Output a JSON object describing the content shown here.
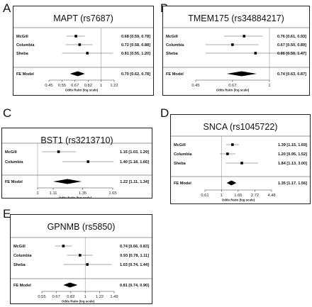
{
  "chart_data": [
    {
      "panel": "A",
      "title": "MAPT (rs7687)",
      "type": "forest",
      "studies": [
        {
          "name": "McGill",
          "or": 0.68,
          "lo": 0.59,
          "hi": 0.78,
          "label": "0.68 [0.59, 0.78]"
        },
        {
          "name": "Columbia",
          "or": 0.72,
          "lo": 0.58,
          "hi": 0.88,
          "label": "0.72 [0.58, 0.88]"
        },
        {
          "name": "Sheba",
          "or": 0.81,
          "lo": 0.55,
          "hi": 1.2,
          "label": "0.81 [0.55, 1.20]"
        }
      ],
      "summary": {
        "name": "FE Model",
        "or": 0.7,
        "lo": 0.62,
        "hi": 0.78,
        "label": "0.70 [0.62, 0.78]"
      },
      "ticks": [
        "0.45",
        "0.55",
        "0.67",
        "0.82",
        "1",
        "1.22"
      ],
      "xlabel": "Odds Ratio (log scale)"
    },
    {
      "panel": "B",
      "title": "TMEM175 (rs34884217)",
      "type": "forest",
      "studies": [
        {
          "name": "McGill",
          "or": 0.76,
          "lo": 0.61,
          "hi": 0.93,
          "label": "0.76 [0.61, 0.93]"
        },
        {
          "name": "Columbia",
          "or": 0.67,
          "lo": 0.5,
          "hi": 0.89,
          "label": "0.67 [0.50, 0.89]"
        },
        {
          "name": "Sheba",
          "or": 0.86,
          "lo": 0.5,
          "hi": 1.47,
          "label": "0.86 [0.50, 1.47]"
        }
      ],
      "summary": {
        "name": "FE Model",
        "or": 0.74,
        "lo": 0.63,
        "hi": 0.87,
        "label": "0.74 [0.63, 0.87]"
      },
      "ticks": [
        "0.45",
        "0.67",
        "1"
      ],
      "xlabel": "Odds Ratio (log scale)"
    },
    {
      "panel": "C",
      "title": "BST1 (rs3213710)",
      "type": "forest",
      "studies": [
        {
          "name": "McGill",
          "or": 1.15,
          "lo": 1.03,
          "hi": 1.29,
          "label": "1.15 [1.03, 1.29]"
        },
        {
          "name": "Columbia",
          "or": 1.4,
          "lo": 1.18,
          "hi": 1.66,
          "label": "1.40 [1.18, 1.66]"
        }
      ],
      "summary": {
        "name": "FE Model",
        "or": 1.22,
        "lo": 1.11,
        "hi": 1.34,
        "label": "1.22 [1.11, 1.34]"
      },
      "ticks": [
        "1",
        "1.11",
        "1.35",
        "1.65"
      ],
      "xlabel": "Odds Ratio (log scale)"
    },
    {
      "panel": "D",
      "title": "SNCA (rs1045722)",
      "type": "forest",
      "studies": [
        {
          "name": "McGill",
          "or": 1.39,
          "lo": 1.15,
          "hi": 1.69,
          "label": "1.39 [1.15, 1.69]"
        },
        {
          "name": "Columbia",
          "or": 1.2,
          "lo": 0.95,
          "hi": 1.52,
          "label": "1.20 [0.95, 1.52]"
        },
        {
          "name": "Sheba",
          "or": 1.84,
          "lo": 1.13,
          "hi": 3.0,
          "label": "1.84 [1.13, 3.00]"
        }
      ],
      "summary": {
        "name": "FE Model",
        "or": 1.35,
        "lo": 1.17,
        "hi": 1.56,
        "label": "1.35 [1.17, 1.56]"
      },
      "ticks": [
        "0.61",
        "1",
        "1.65",
        "2.72",
        "4.48"
      ],
      "xlabel": "Odds Ratio (log scale)"
    },
    {
      "panel": "E",
      "title": "GPNMB (rs5850)",
      "type": "forest",
      "studies": [
        {
          "name": "McGill",
          "or": 0.74,
          "lo": 0.66,
          "hi": 0.83,
          "label": "0.74 [0.66, 0.83]"
        },
        {
          "name": "Columbia",
          "or": 0.93,
          "lo": 0.78,
          "hi": 1.11,
          "label": "0.93 [0.78, 1.11]"
        },
        {
          "name": "Sheba",
          "or": 1.03,
          "lo": 0.74,
          "hi": 1.44,
          "label": "1.03 [0.74, 1.44]"
        }
      ],
      "summary": {
        "name": "FE Model",
        "or": 0.81,
        "lo": 0.74,
        "hi": 0.9,
        "label": "0.81 [0.74, 0.90]"
      },
      "ticks": [
        "0.55",
        "0.67",
        "0.82",
        "1",
        "1.22",
        "1.49"
      ],
      "xlabel": "Odds Ratio (log scale)"
    }
  ]
}
